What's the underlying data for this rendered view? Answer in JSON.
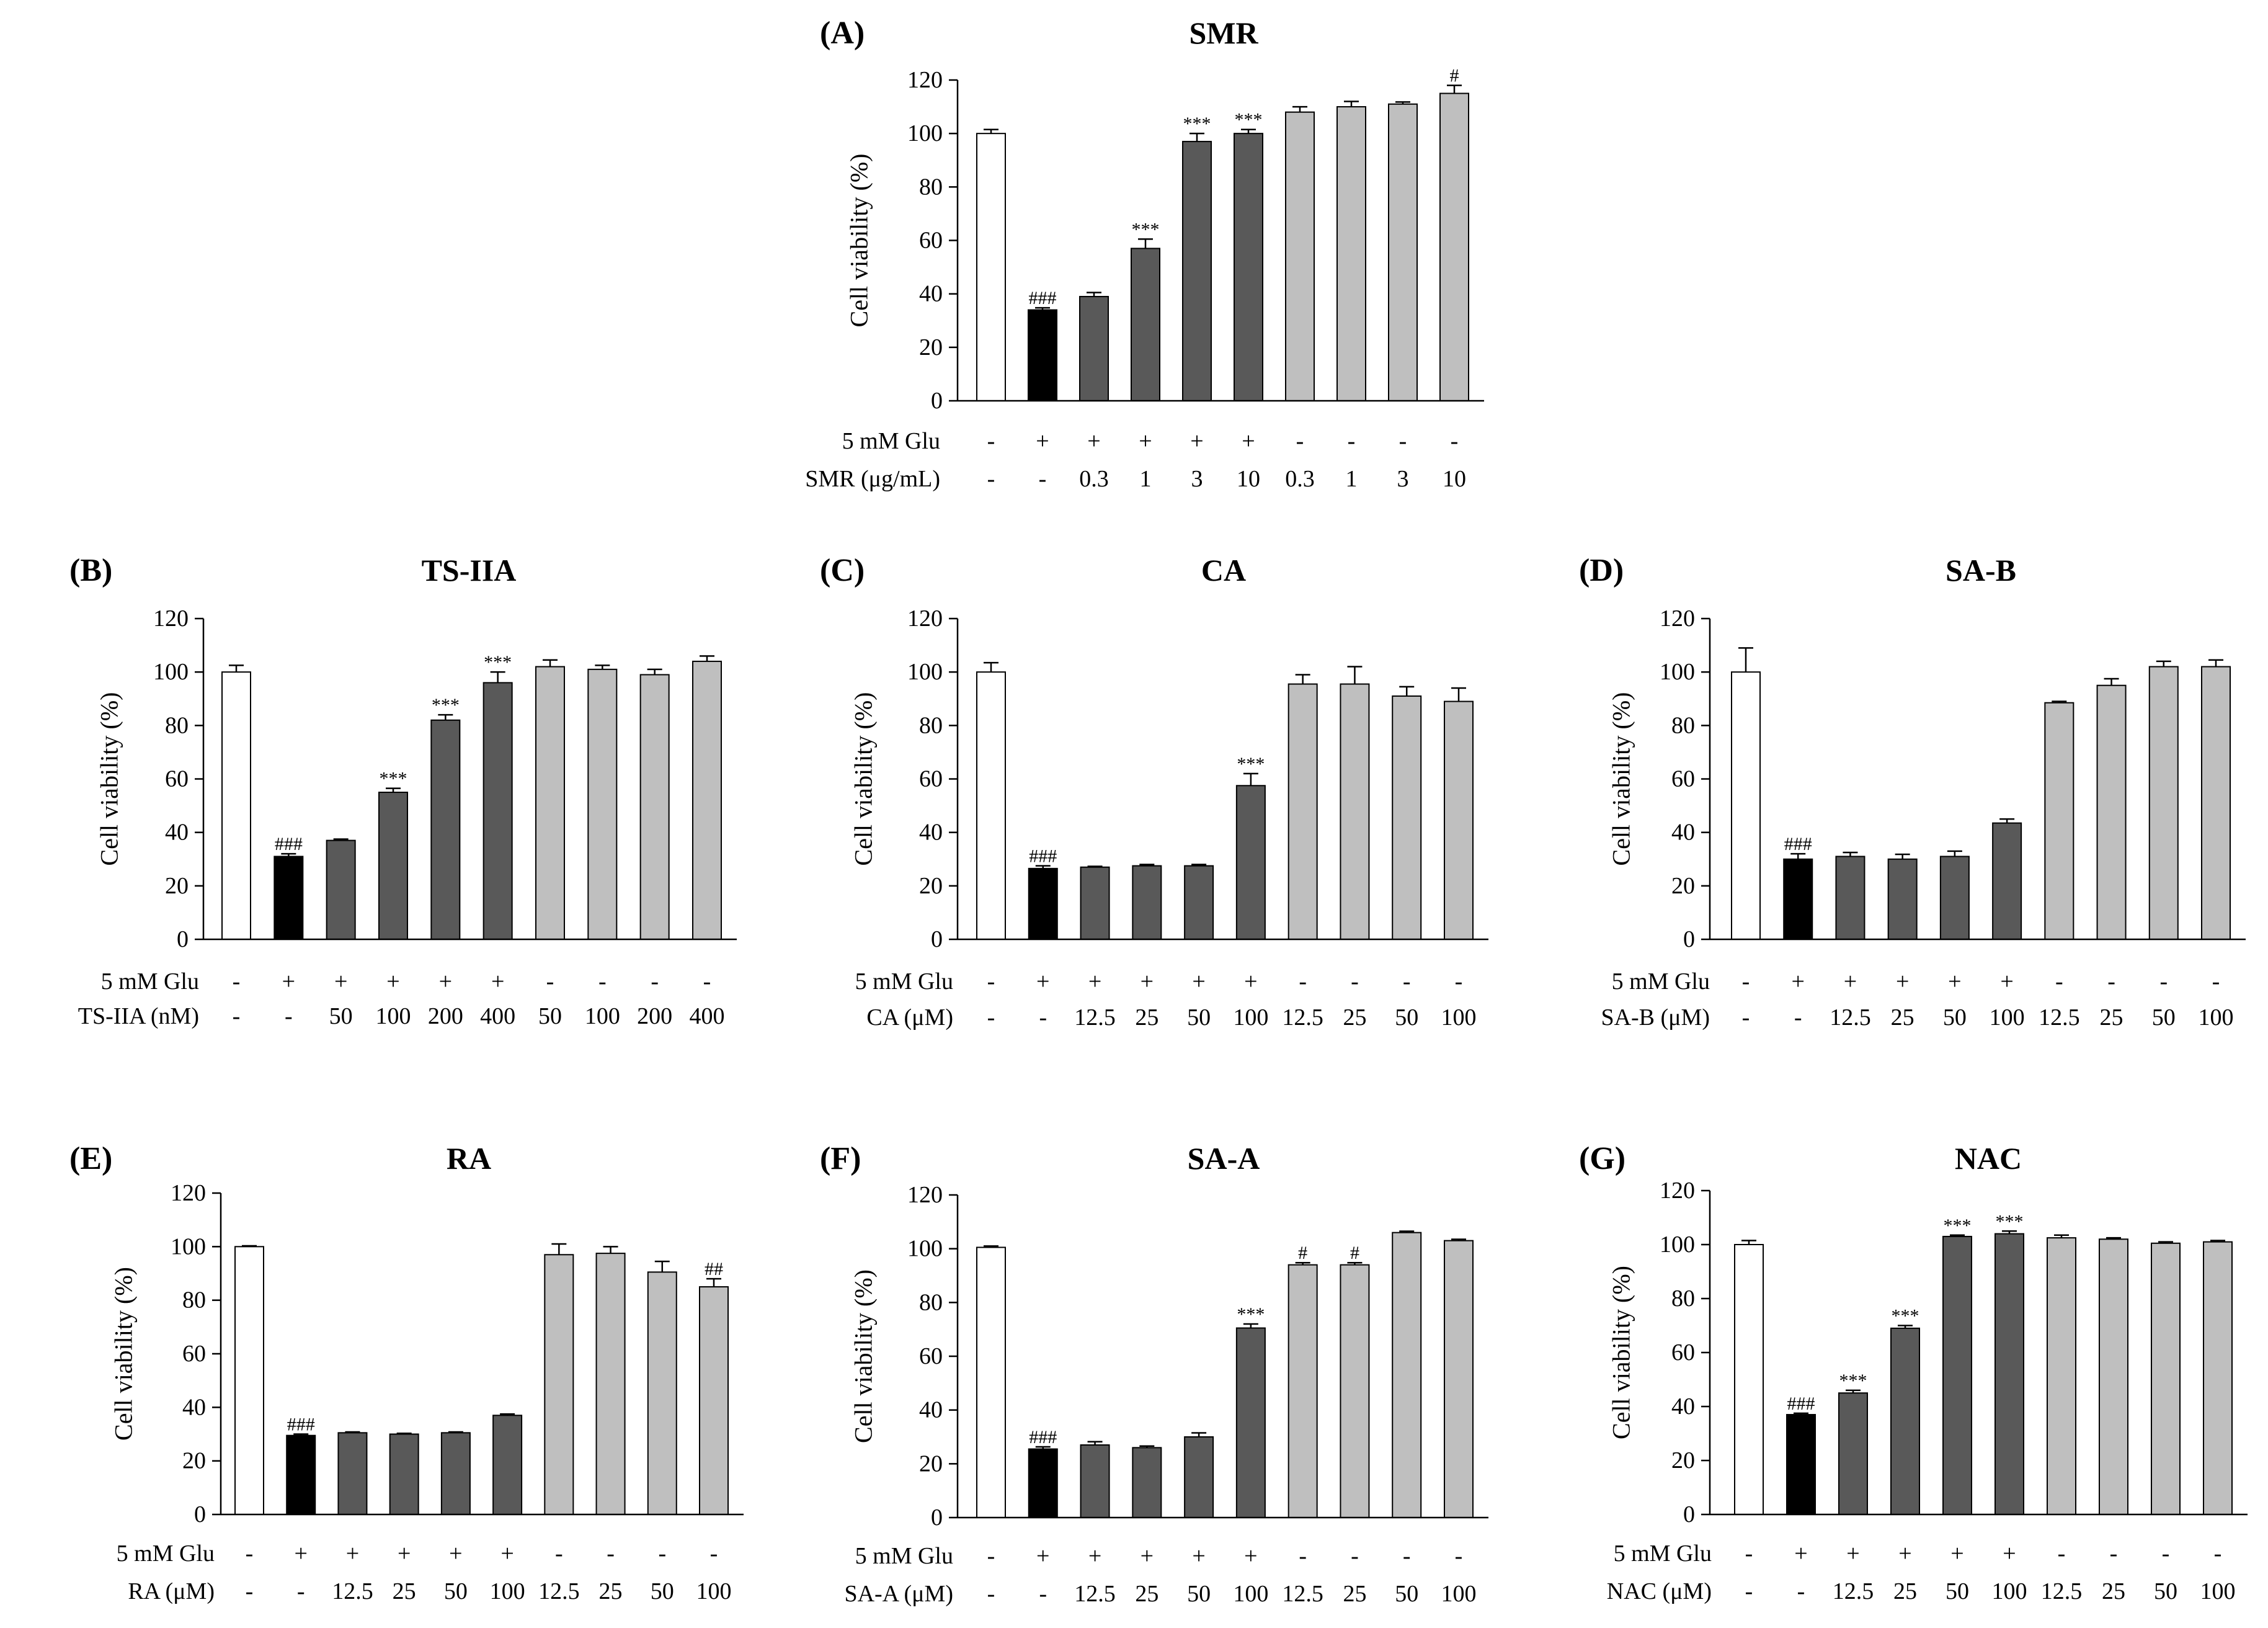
{
  "chart_data": [
    {
      "type": "bar",
      "panel_label": "(A)",
      "title": "SMR",
      "ylabel": "Cell viability (%)",
      "ylim": [
        0,
        120
      ],
      "yticks": [
        0,
        20,
        40,
        60,
        80,
        100,
        120
      ],
      "row_labels": [
        "5 mM Glu",
        "SMR (μg/mL)"
      ],
      "glutamate": [
        "-",
        "+",
        "+",
        "+",
        "+",
        "+",
        "-",
        "-",
        "-",
        "-"
      ],
      "dose": [
        "-",
        "-",
        "0.3",
        "1",
        "3",
        "10",
        "0.3",
        "1",
        "3",
        "10"
      ],
      "values": [
        100,
        34,
        39,
        57,
        97,
        100,
        108,
        110,
        111,
        115
      ],
      "errors": [
        1.5,
        0.8,
        1.5,
        3.5,
        3,
        1.5,
        2,
        2,
        0.8,
        3
      ],
      "bar_colors": [
        "#ffffff",
        "#000000",
        "#595959",
        "#595959",
        "#595959",
        "#595959",
        "#bfbfbf",
        "#bfbfbf",
        "#bfbfbf",
        "#bfbfbf"
      ],
      "annotations": [
        {
          "bar": 1,
          "text": "###"
        },
        {
          "bar": 3,
          "text": "***"
        },
        {
          "bar": 4,
          "text": "***"
        },
        {
          "bar": 5,
          "text": "***"
        },
        {
          "bar": 9,
          "text": "#"
        }
      ]
    },
    {
      "type": "bar",
      "panel_label": "(B)",
      "title": "TS-IIA",
      "ylabel": "Cell viability (%)",
      "ylim": [
        0,
        120
      ],
      "yticks": [
        0,
        20,
        40,
        60,
        80,
        100,
        120
      ],
      "row_labels": [
        "5 mM Glu",
        "TS-IIA (nM)"
      ],
      "glutamate": [
        "-",
        "+",
        "+",
        "+",
        "+",
        "+",
        "-",
        "-",
        "-",
        "-"
      ],
      "dose": [
        "-",
        "-",
        "50",
        "100",
        "200",
        "400",
        "50",
        "100",
        "200",
        "400"
      ],
      "values": [
        100,
        31,
        37,
        55,
        82,
        96,
        102,
        101,
        99,
        104
      ],
      "errors": [
        2.5,
        1,
        0.5,
        1.5,
        2,
        4,
        2.5,
        1.5,
        2,
        2
      ],
      "bar_colors": [
        "#ffffff",
        "#000000",
        "#595959",
        "#595959",
        "#595959",
        "#595959",
        "#bfbfbf",
        "#bfbfbf",
        "#bfbfbf",
        "#bfbfbf"
      ],
      "annotations": [
        {
          "bar": 1,
          "text": "###"
        },
        {
          "bar": 3,
          "text": "***"
        },
        {
          "bar": 4,
          "text": "***"
        },
        {
          "bar": 5,
          "text": "***"
        }
      ]
    },
    {
      "type": "bar",
      "panel_label": "(C)",
      "title": "CA",
      "ylabel": "Cell viability (%)",
      "ylim": [
        0,
        120
      ],
      "yticks": [
        0,
        20,
        40,
        60,
        80,
        100,
        120
      ],
      "row_labels": [
        "5 mM Glu",
        "CA (μM)"
      ],
      "glutamate": [
        "-",
        "+",
        "+",
        "+",
        "+",
        "+",
        "-",
        "-",
        "-",
        "-"
      ],
      "dose": [
        "-",
        "-",
        "12.5",
        "25",
        "50",
        "100",
        "12.5",
        "25",
        "50",
        "100"
      ],
      "values": [
        100,
        26.5,
        27,
        27.5,
        27.5,
        57.5,
        95.5,
        95.5,
        91,
        89
      ],
      "errors": [
        3.5,
        1,
        0.3,
        0.5,
        0.5,
        4.5,
        3.5,
        6.5,
        3.5,
        5
      ],
      "bar_colors": [
        "#ffffff",
        "#000000",
        "#595959",
        "#595959",
        "#595959",
        "#595959",
        "#bfbfbf",
        "#bfbfbf",
        "#bfbfbf",
        "#bfbfbf"
      ],
      "annotations": [
        {
          "bar": 1,
          "text": "###"
        },
        {
          "bar": 5,
          "text": "***"
        }
      ]
    },
    {
      "type": "bar",
      "panel_label": "(D)",
      "title": "SA-B",
      "ylabel": "Cell viability (%)",
      "ylim": [
        0,
        120
      ],
      "yticks": [
        0,
        20,
        40,
        60,
        80,
        100,
        120
      ],
      "row_labels": [
        "5 mM Glu",
        "SA-B (μM)"
      ],
      "glutamate": [
        "-",
        "+",
        "+",
        "+",
        "+",
        "+",
        "-",
        "-",
        "-",
        "-"
      ],
      "dose": [
        "-",
        "-",
        "12.5",
        "25",
        "50",
        "100",
        "12.5",
        "25",
        "50",
        "100"
      ],
      "values": [
        100,
        30,
        31,
        30,
        31,
        43.5,
        88.5,
        95,
        102,
        102
      ],
      "errors": [
        9,
        2,
        1.5,
        1.8,
        2,
        1.5,
        0.5,
        2.5,
        2,
        2.5
      ],
      "bar_colors": [
        "#ffffff",
        "#000000",
        "#595959",
        "#595959",
        "#595959",
        "#595959",
        "#bfbfbf",
        "#bfbfbf",
        "#bfbfbf",
        "#bfbfbf"
      ],
      "annotations": [
        {
          "bar": 1,
          "text": "###"
        }
      ]
    },
    {
      "type": "bar",
      "panel_label": "(E)",
      "title": "RA",
      "ylabel": "Cell viability (%)",
      "ylim": [
        0,
        120
      ],
      "yticks": [
        0,
        20,
        40,
        60,
        80,
        100,
        120
      ],
      "row_labels": [
        "5 mM Glu",
        "RA (μM)"
      ],
      "glutamate": [
        "-",
        "+",
        "+",
        "+",
        "+",
        "+",
        "-",
        "-",
        "-",
        "-"
      ],
      "dose": [
        "-",
        "-",
        "12.5",
        "25",
        "50",
        "100",
        "12.5",
        "25",
        "50",
        "100"
      ],
      "values": [
        100,
        29.5,
        30.5,
        30,
        30.5,
        37,
        97,
        97.5,
        90.5,
        85
      ],
      "errors": [
        0.3,
        0.5,
        0.3,
        0.3,
        0.3,
        0.5,
        4,
        2.5,
        4,
        3
      ],
      "bar_colors": [
        "#ffffff",
        "#000000",
        "#595959",
        "#595959",
        "#595959",
        "#595959",
        "#bfbfbf",
        "#bfbfbf",
        "#bfbfbf",
        "#bfbfbf"
      ],
      "annotations": [
        {
          "bar": 1,
          "text": "###"
        },
        {
          "bar": 9,
          "text": "##"
        }
      ]
    },
    {
      "type": "bar",
      "panel_label": "(F)",
      "title": "SA-A",
      "ylabel": "Cell viability (%)",
      "ylim": [
        0,
        120
      ],
      "yticks": [
        0,
        20,
        40,
        60,
        80,
        100,
        120
      ],
      "row_labels": [
        "5 mM Glu",
        "SA-A (μM)"
      ],
      "glutamate": [
        "-",
        "+",
        "+",
        "+",
        "+",
        "+",
        "-",
        "-",
        "-",
        "-"
      ],
      "dose": [
        "-",
        "-",
        "12.5",
        "25",
        "50",
        "100",
        "12.5",
        "25",
        "50",
        "100"
      ],
      "values": [
        100.5,
        25.5,
        27,
        26,
        30,
        70.5,
        94,
        94,
        106,
        103
      ],
      "errors": [
        0.5,
        0.8,
        1.2,
        0.6,
        1.5,
        1.5,
        0.8,
        0.8,
        0.5,
        0.5
      ],
      "bar_colors": [
        "#ffffff",
        "#000000",
        "#595959",
        "#595959",
        "#595959",
        "#595959",
        "#bfbfbf",
        "#bfbfbf",
        "#bfbfbf",
        "#bfbfbf"
      ],
      "annotations": [
        {
          "bar": 1,
          "text": "###"
        },
        {
          "bar": 5,
          "text": "***"
        },
        {
          "bar": 6,
          "text": "#"
        },
        {
          "bar": 7,
          "text": "#"
        }
      ]
    },
    {
      "type": "bar",
      "panel_label": "(G)",
      "title": "NAC",
      "ylabel": "Cell viability (%)",
      "ylim": [
        0,
        120
      ],
      "yticks": [
        0,
        20,
        40,
        60,
        80,
        100,
        120
      ],
      "row_labels": [
        "5 mM Glu",
        "NAC (μM)"
      ],
      "glutamate": [
        "-",
        "+",
        "+",
        "+",
        "+",
        "+",
        "-",
        "-",
        "-",
        "-"
      ],
      "dose": [
        "-",
        "-",
        "12.5",
        "25",
        "50",
        "100",
        "12.5",
        "25",
        "50",
        "100"
      ],
      "values": [
        100,
        37,
        45,
        69,
        103,
        104,
        102.5,
        102,
        100.5,
        101
      ],
      "errors": [
        1.5,
        0.5,
        1,
        1,
        0.5,
        1,
        1,
        0.5,
        0.5,
        0.5
      ],
      "bar_colors": [
        "#ffffff",
        "#000000",
        "#595959",
        "#595959",
        "#595959",
        "#595959",
        "#bfbfbf",
        "#bfbfbf",
        "#bfbfbf",
        "#bfbfbf"
      ],
      "annotations": [
        {
          "bar": 1,
          "text": "###"
        },
        {
          "bar": 2,
          "text": "***"
        },
        {
          "bar": 3,
          "text": "***"
        },
        {
          "bar": 4,
          "text": "***"
        },
        {
          "bar": 5,
          "text": "***"
        }
      ]
    }
  ]
}
